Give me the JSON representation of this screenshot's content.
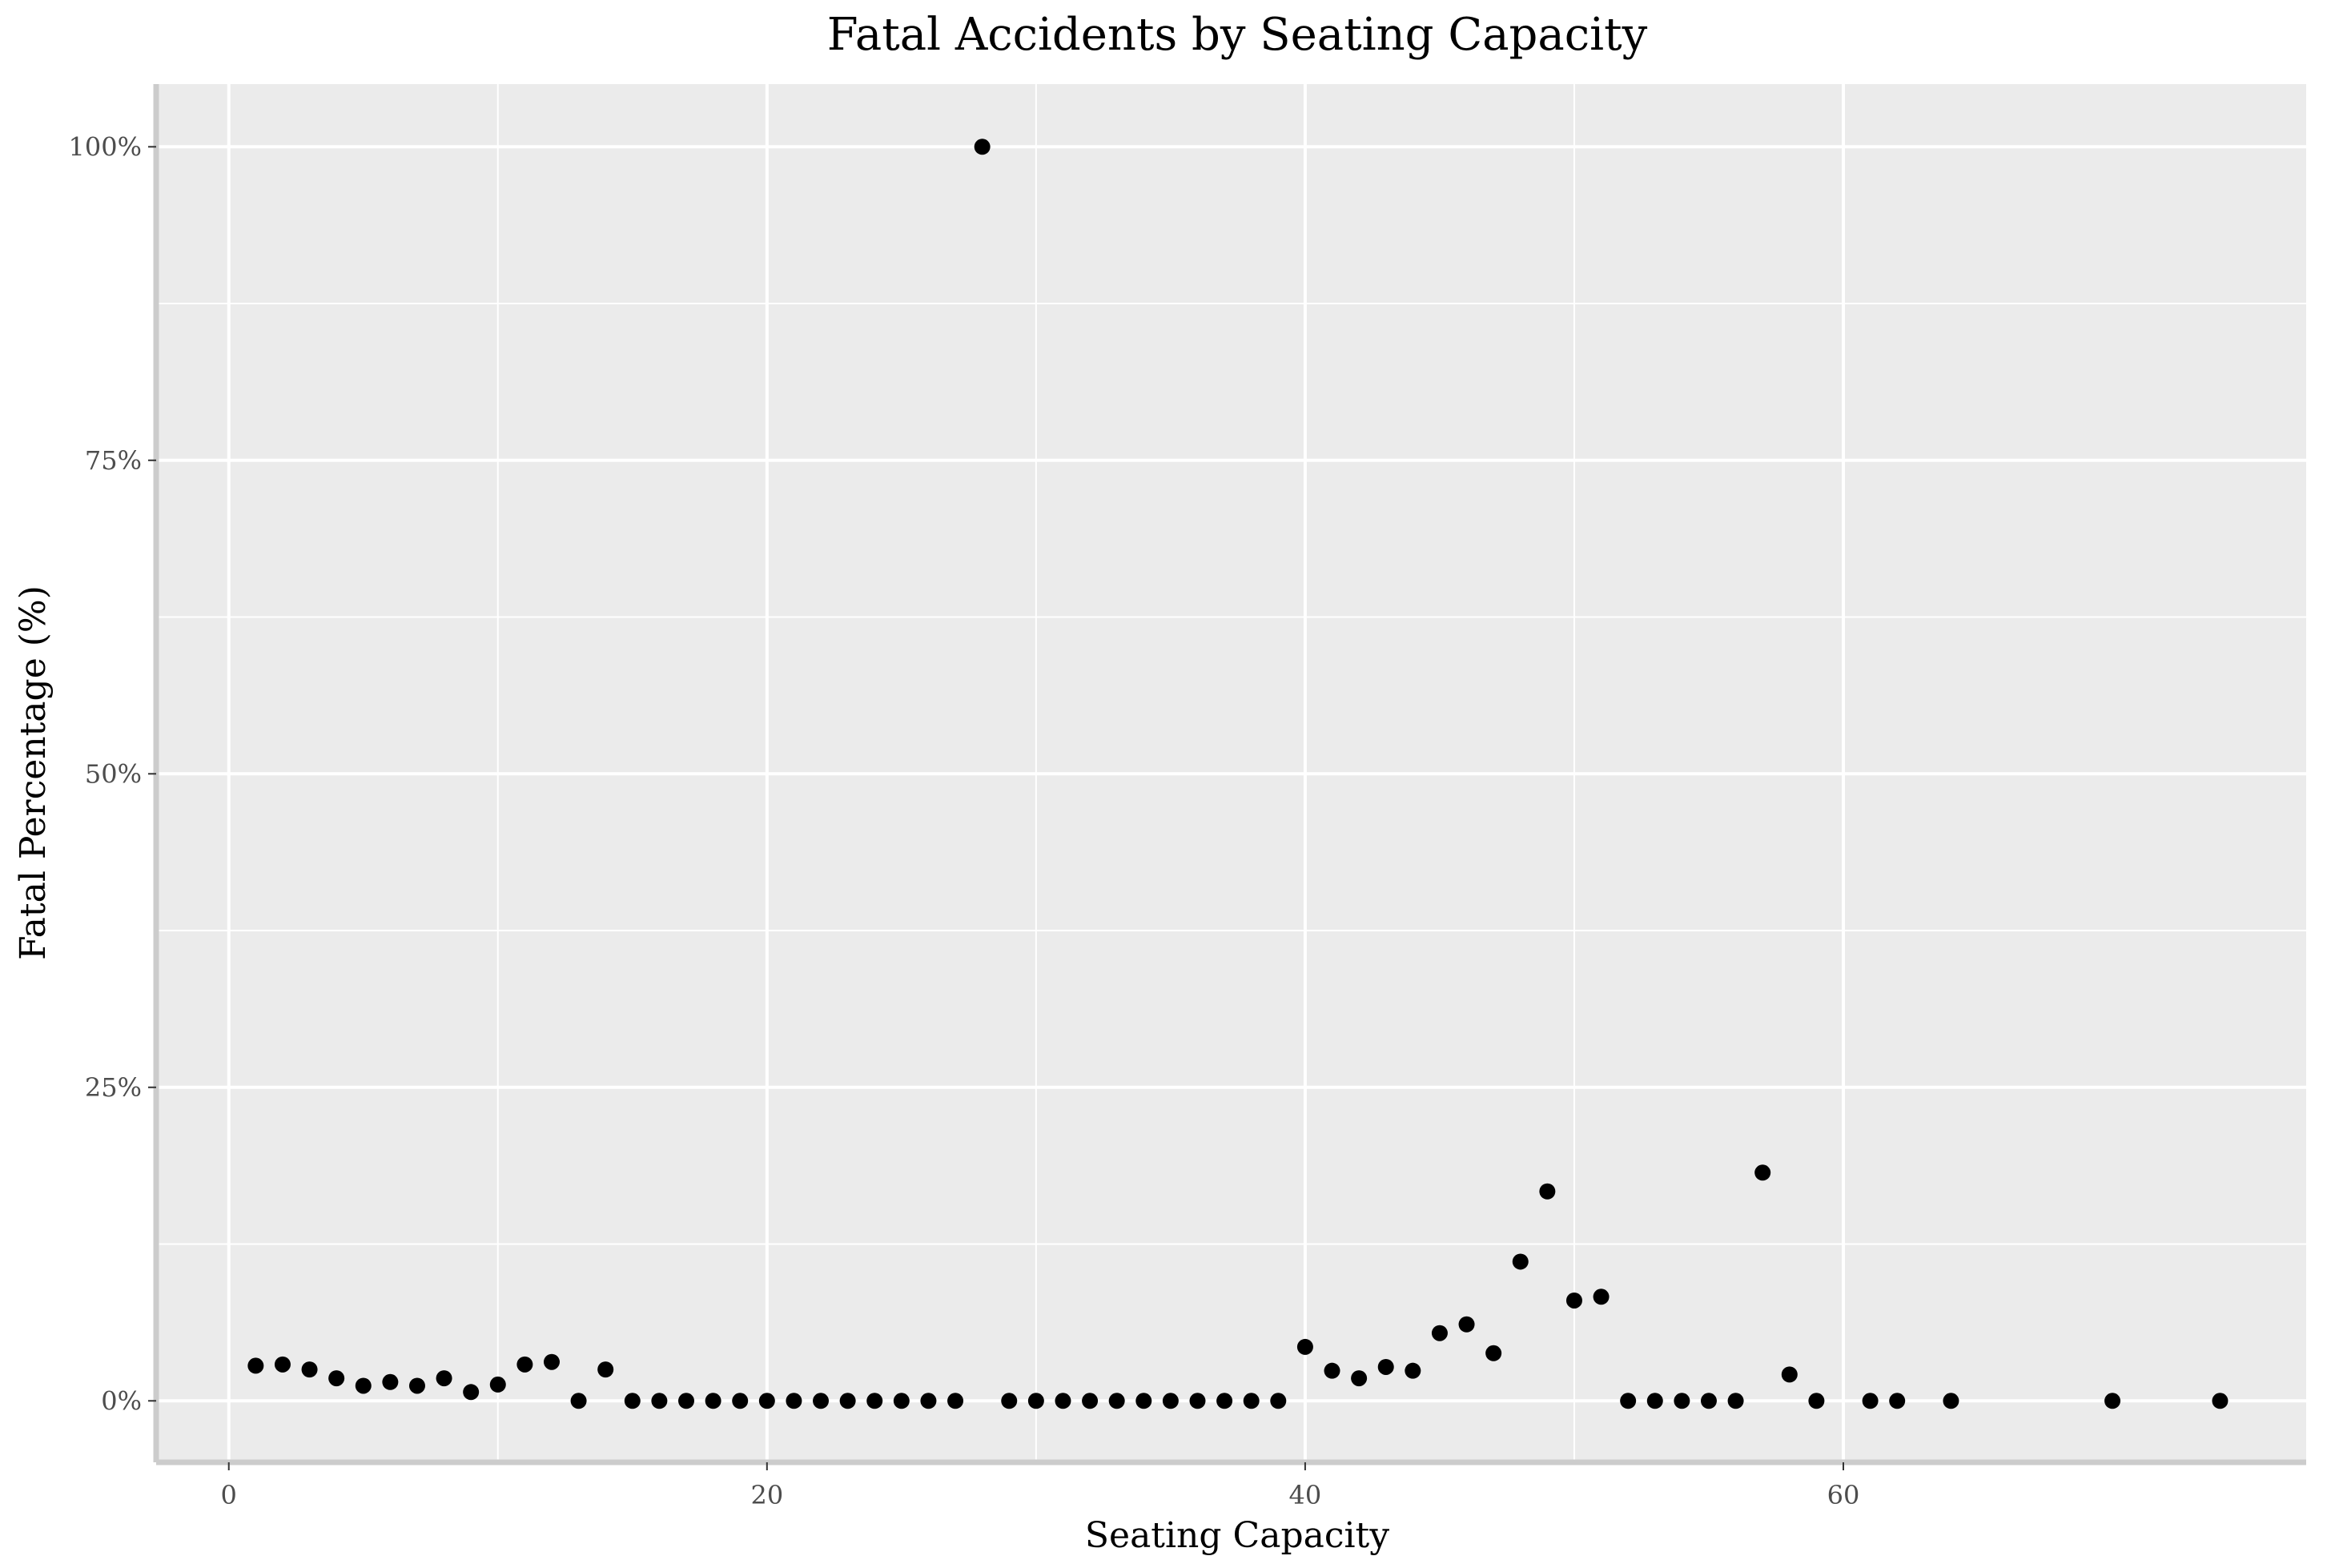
{
  "chart_data": {
    "type": "scatter",
    "title": "Fatal Accidents by Seating Capacity",
    "xlabel": "Seating Capacity",
    "ylabel": "Fatal Percentage (%)",
    "xlim": [
      -2.7,
      77.2
    ],
    "ylim": [
      -4.9,
      105
    ],
    "x_ticks": [
      0,
      20,
      40,
      60
    ],
    "y_ticks": [
      0,
      25,
      50,
      75,
      100
    ],
    "y_tick_labels": [
      "0%",
      "25%",
      "50%",
      "75%",
      "100%"
    ],
    "grid": true,
    "points": [
      {
        "x": 1,
        "y": 2.8
      },
      {
        "x": 2,
        "y": 2.9
      },
      {
        "x": 3,
        "y": 2.5
      },
      {
        "x": 4,
        "y": 1.8
      },
      {
        "x": 5,
        "y": 1.2
      },
      {
        "x": 6,
        "y": 1.5
      },
      {
        "x": 7,
        "y": 1.2
      },
      {
        "x": 8,
        "y": 1.8
      },
      {
        "x": 9,
        "y": 0.7
      },
      {
        "x": 10,
        "y": 1.3
      },
      {
        "x": 11,
        "y": 2.9
      },
      {
        "x": 12,
        "y": 3.1
      },
      {
        "x": 13,
        "y": 0.0
      },
      {
        "x": 14,
        "y": 2.5
      },
      {
        "x": 15,
        "y": 0.0
      },
      {
        "x": 16,
        "y": 0.0
      },
      {
        "x": 17,
        "y": 0.0
      },
      {
        "x": 18,
        "y": 0.0
      },
      {
        "x": 19,
        "y": 0.0
      },
      {
        "x": 20,
        "y": 0.0
      },
      {
        "x": 21,
        "y": 0.0
      },
      {
        "x": 22,
        "y": 0.0
      },
      {
        "x": 23,
        "y": 0.0
      },
      {
        "x": 24,
        "y": 0.0
      },
      {
        "x": 25,
        "y": 0.0
      },
      {
        "x": 26,
        "y": 0.0
      },
      {
        "x": 27,
        "y": 0.0
      },
      {
        "x": 28,
        "y": 100.0
      },
      {
        "x": 29,
        "y": 0.0
      },
      {
        "x": 30,
        "y": 0.0
      },
      {
        "x": 31,
        "y": 0.0
      },
      {
        "x": 32,
        "y": 0.0
      },
      {
        "x": 33,
        "y": 0.0
      },
      {
        "x": 34,
        "y": 0.0
      },
      {
        "x": 35,
        "y": 0.0
      },
      {
        "x": 36,
        "y": 0.0
      },
      {
        "x": 37,
        "y": 0.0
      },
      {
        "x": 38,
        "y": 0.0
      },
      {
        "x": 39,
        "y": 0.0
      },
      {
        "x": 40,
        "y": 4.3
      },
      {
        "x": 41,
        "y": 2.4
      },
      {
        "x": 42,
        "y": 1.8
      },
      {
        "x": 43,
        "y": 2.7
      },
      {
        "x": 44,
        "y": 2.4
      },
      {
        "x": 45,
        "y": 5.4
      },
      {
        "x": 46,
        "y": 6.1
      },
      {
        "x": 47,
        "y": 3.8
      },
      {
        "x": 48,
        "y": 11.1
      },
      {
        "x": 49,
        "y": 16.7
      },
      {
        "x": 50,
        "y": 8.0
      },
      {
        "x": 51,
        "y": 8.3
      },
      {
        "x": 52,
        "y": 0.0
      },
      {
        "x": 53,
        "y": 0.0
      },
      {
        "x": 54,
        "y": 0.0
      },
      {
        "x": 55,
        "y": 0.0
      },
      {
        "x": 56,
        "y": 0.0
      },
      {
        "x": 57,
        "y": 18.2
      },
      {
        "x": 58,
        "y": 2.1
      },
      {
        "x": 59,
        "y": 0.0
      },
      {
        "x": 61,
        "y": 0.0
      },
      {
        "x": 62,
        "y": 0.0
      },
      {
        "x": 64,
        "y": 0.0
      },
      {
        "x": 70,
        "y": 0.0
      },
      {
        "x": 74,
        "y": 0.0
      }
    ],
    "colors": {
      "panel_background": "#ebebeb",
      "grid_major": "#ffffff",
      "point": "#000000",
      "axis_line": "#cccccc"
    }
  }
}
